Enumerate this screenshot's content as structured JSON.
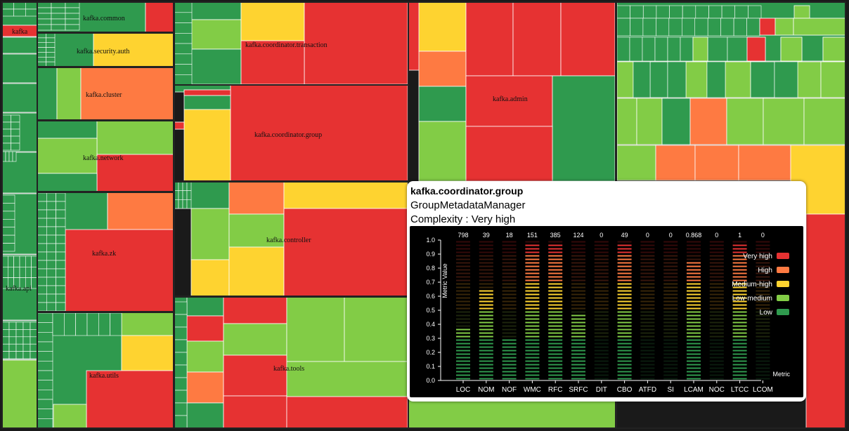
{
  "packages": [
    {
      "name": "kafka",
      "label": "kafka"
    },
    {
      "name": "kafka-common",
      "label": "kafka.common"
    },
    {
      "name": "kafka-security-auth",
      "label": "kafka.security.auth"
    },
    {
      "name": "kafka-cluster",
      "label": "kafka.cluster"
    },
    {
      "name": "kafka-network",
      "label": "kafka.network"
    },
    {
      "name": "kafka-zk",
      "label": "kafka.zk"
    },
    {
      "name": "kafka-api",
      "label": "kafka.api"
    },
    {
      "name": "kafka-utils",
      "label": "kafka.utils"
    },
    {
      "name": "kafka-coordinator-transaction",
      "label": "kafka.coordinator.transaction"
    },
    {
      "name": "kafka-coordinator-group",
      "label": "kafka.coordinator.group"
    },
    {
      "name": "kafka-controller",
      "label": "kafka.controller"
    },
    {
      "name": "kafka-tools",
      "label": "kafka.tools"
    },
    {
      "name": "kafka-admin",
      "label": "kafka.admin"
    }
  ],
  "colors": {
    "very_high": "#e63232",
    "high": "#fe7a42",
    "medium_high": "#fed330",
    "low_medium": "#82cc46",
    "low": "#2f9a4e"
  },
  "tooltip": {
    "package": "kafka.coordinator.group",
    "class_name": "GroupMetadataManager",
    "complexity": "Complexity : Very high"
  },
  "chart_data": {
    "type": "bar",
    "ylabel": "Metric Value",
    "xlabel": "Metric",
    "ylim": [
      0,
      1
    ],
    "yticks": [
      "0.0",
      "0.1",
      "0.2",
      "0.3",
      "0.4",
      "0.5",
      "0.6",
      "0.7",
      "0.8",
      "0.9",
      "1.0"
    ],
    "categories": [
      "LOC",
      "NOM",
      "NOF",
      "WMC",
      "RFC",
      "SRFC",
      "DIT",
      "CBO",
      "ATFD",
      "SI",
      "LCAM",
      "NOC",
      "LTCC",
      "LCOM"
    ],
    "value_labels": [
      "798",
      "39",
      "18",
      "151",
      "385",
      "124",
      "0",
      "49",
      "0",
      "0",
      "0.868",
      "0",
      "1",
      "0"
    ],
    "values": [
      0.38,
      0.65,
      0.3,
      0.98,
      0.98,
      0.48,
      0,
      0.98,
      0,
      0,
      0.86,
      0,
      0.98,
      0
    ],
    "legend": [
      "Very high",
      "High",
      "Medium-high",
      "Low-medium",
      "Low"
    ],
    "legend_position": "top-right"
  }
}
